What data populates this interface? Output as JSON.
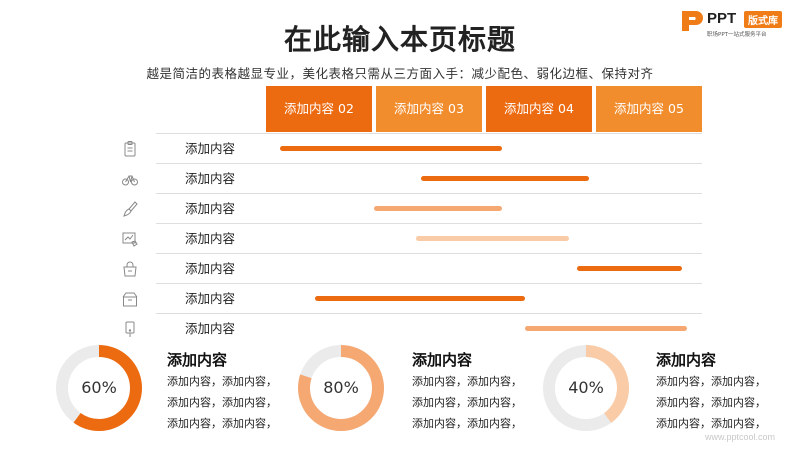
{
  "header": {
    "title": "在此输入本页标题",
    "subtitle": "越是简洁的表格越显专业，美化表格只需从三方面入手：减少配色、弱化边框、保持对齐"
  },
  "logo": {
    "ppt": "PPT",
    "badge": "版式库",
    "tagline": "职场PPT一站式服务平台"
  },
  "columns": [
    {
      "label": "添加内容 02",
      "color": "#ec6a10"
    },
    {
      "label": "添加内容 03",
      "color": "#f18d2c"
    },
    {
      "label": "添加内容 04",
      "color": "#ec6a10"
    },
    {
      "label": "添加内容 05",
      "color": "#f18d2c"
    }
  ],
  "rows": [
    {
      "label": "添加内容",
      "icon": "clipboard-icon",
      "bar_color": "#ec6a10"
    },
    {
      "label": "添加内容",
      "icon": "bicycle-icon",
      "bar_color": "#ec6a10"
    },
    {
      "label": "添加内容",
      "icon": "brush-icon",
      "bar_color": "#f5a872"
    },
    {
      "label": "添加内容",
      "icon": "chart-hand-icon",
      "bar_color": "#f9cba7"
    },
    {
      "label": "添加内容",
      "icon": "bag-icon",
      "bar_color": "#ec6a10"
    },
    {
      "label": "添加内容",
      "icon": "box-icon",
      "bar_color": "#ec6a10"
    },
    {
      "label": "添加内容",
      "icon": "phone-icon",
      "bar_color": "#f5a872"
    }
  ],
  "cards": [
    {
      "percent": 60,
      "percent_label": "60%",
      "color": "#ec6a10",
      "title": "添加内容",
      "lines": [
        "添加内容，添加内容，",
        "添加内容，添加内容，",
        "添加内容，添加内容，"
      ]
    },
    {
      "percent": 80,
      "percent_label": "80%",
      "color": "#f5a872",
      "title": "添加内容",
      "lines": [
        "添加内容，添加内容，",
        "添加内容，添加内容，",
        "添加内容，添加内容，"
      ]
    },
    {
      "percent": 40,
      "percent_label": "40%",
      "color": "#f9cba7",
      "title": "添加内容",
      "lines": [
        "添加内容，添加内容，",
        "添加内容，添加内容，",
        "添加内容，添加内容，"
      ]
    }
  ],
  "watermark": "www.pptcool.com"
}
